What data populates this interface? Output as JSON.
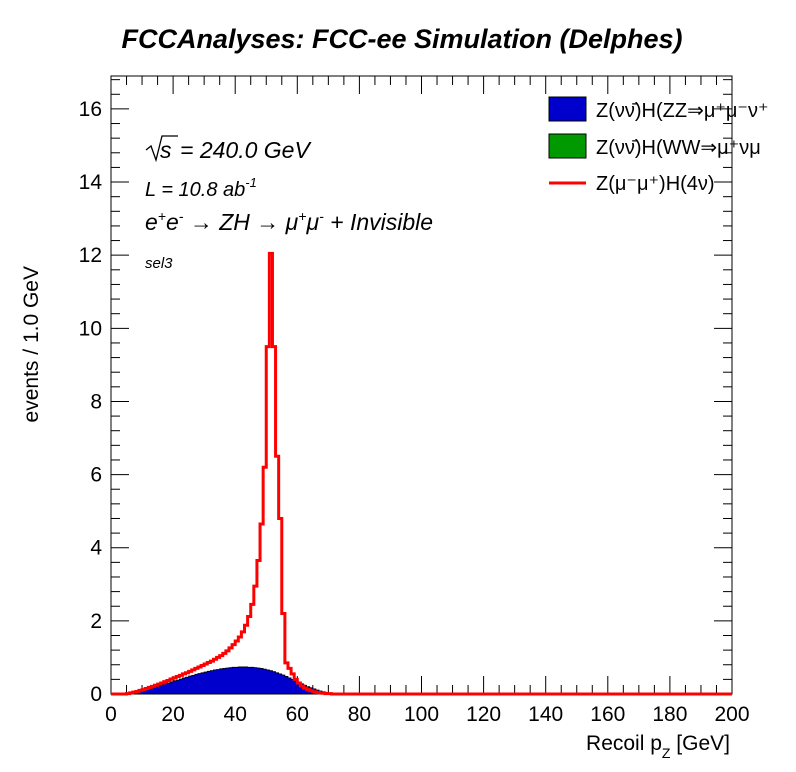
{
  "chart_data": {
    "type": "histogram",
    "title": "FCCAnalyses: FCC-ee Simulation (Delphes)",
    "xlabel": "Recoil p_{Z} [GeV]",
    "ylabel": "events / 1.0 GeV",
    "xlim": [
      0,
      200
    ],
    "ylim": [
      0,
      16.9
    ],
    "bin_width": 1.0,
    "x_ticks": [
      0,
      20,
      40,
      60,
      80,
      100,
      120,
      140,
      160,
      180,
      200
    ],
    "y_ticks": [
      0,
      2,
      4,
      6,
      8,
      10,
      12,
      14,
      16
    ],
    "annotations": {
      "sqrt_s": "= 240.0 GeV",
      "lumi": "L = 10.8 ab",
      "lumi_exp": "-1",
      "process": "e+e- → ZH → μ+μ- + Invisible",
      "selection": "sel3"
    },
    "legend": {
      "placement": "top-right",
      "entries": [
        {
          "label": "Z(νν̄)H(ZZ⇒μ⁺μ⁻ν⁺",
          "color": "#0000cc",
          "style": "fill"
        },
        {
          "label": "Z(νν̄)H(WW⇒μ⁺νμ",
          "color": "#009900",
          "style": "fill"
        },
        {
          "label": "Z(μ⁻μ⁺)H(4ν)",
          "color": "#ff0000",
          "style": "line"
        }
      ]
    },
    "series": [
      {
        "name": "Z(νν̄)H(ZZ⇒μ⁺μ⁻ν⁺",
        "style": "stacked-fill",
        "color": "#0000cc",
        "values": [
          0,
          0,
          0,
          0,
          0,
          0.01,
          0.02,
          0.04,
          0.06,
          0.08,
          0.1,
          0.12,
          0.14,
          0.17,
          0.2,
          0.22,
          0.25,
          0.28,
          0.3,
          0.33,
          0.36,
          0.38,
          0.41,
          0.44,
          0.46,
          0.49,
          0.51,
          0.54,
          0.56,
          0.58,
          0.6,
          0.62,
          0.64,
          0.66,
          0.67,
          0.69,
          0.7,
          0.71,
          0.72,
          0.73,
          0.73,
          0.74,
          0.74,
          0.74,
          0.73,
          0.73,
          0.72,
          0.71,
          0.7,
          0.68,
          0.66,
          0.64,
          0.61,
          0.58,
          0.55,
          0.52,
          0.48,
          0.44,
          0.4,
          0.36,
          0.32,
          0.28,
          0.24,
          0.2,
          0.17,
          0.14,
          0.11,
          0.08,
          0.06,
          0.04,
          0.03,
          0.02,
          0.01,
          0.01,
          0.0,
          0.0
        ]
      },
      {
        "name": "Z(νν̄)H(WW⇒μ⁺νμ",
        "style": "stacked-fill",
        "color": "#009900",
        "values": [
          0,
          0,
          0,
          0,
          0,
          0,
          0,
          0,
          0,
          0,
          0,
          0,
          0,
          0,
          0,
          0,
          0,
          0,
          0,
          0,
          0,
          0,
          0,
          0,
          0,
          0,
          0,
          0,
          0,
          0,
          0,
          0,
          0,
          0,
          0,
          0,
          0,
          0,
          0,
          0,
          0,
          0,
          0,
          0,
          0,
          0,
          0,
          0,
          0,
          0,
          0,
          0,
          0,
          0,
          0,
          0,
          0,
          0,
          0,
          0,
          0,
          0,
          0,
          0,
          0,
          0,
          0,
          0,
          0,
          0,
          0,
          0,
          0,
          0,
          0,
          0
        ]
      },
      {
        "name": "Z(μ⁻μ⁺)H(4ν)",
        "style": "line",
        "color": "#ff0000",
        "values": [
          0,
          0,
          0,
          0,
          0,
          0.01,
          0.03,
          0.05,
          0.07,
          0.1,
          0.12,
          0.15,
          0.18,
          0.21,
          0.24,
          0.27,
          0.3,
          0.34,
          0.37,
          0.41,
          0.44,
          0.48,
          0.51,
          0.55,
          0.58,
          0.62,
          0.66,
          0.7,
          0.74,
          0.78,
          0.82,
          0.86,
          0.9,
          0.95,
          1.0,
          1.05,
          1.11,
          1.18,
          1.26,
          1.35,
          1.45,
          1.56,
          1.7,
          1.88,
          2.12,
          2.45,
          2.95,
          3.65,
          4.65,
          6.2,
          9.5,
          12.05,
          9.5,
          6.5,
          4.8,
          2.2,
          0.85,
          0.7,
          0.55,
          0.4,
          0.3,
          0.22,
          0.16,
          0.12,
          0.09,
          0.06,
          0.04,
          0.03,
          0.02,
          0.01,
          0.01,
          0.0,
          0.0,
          0.0,
          0.0,
          0.0
        ]
      }
    ]
  }
}
